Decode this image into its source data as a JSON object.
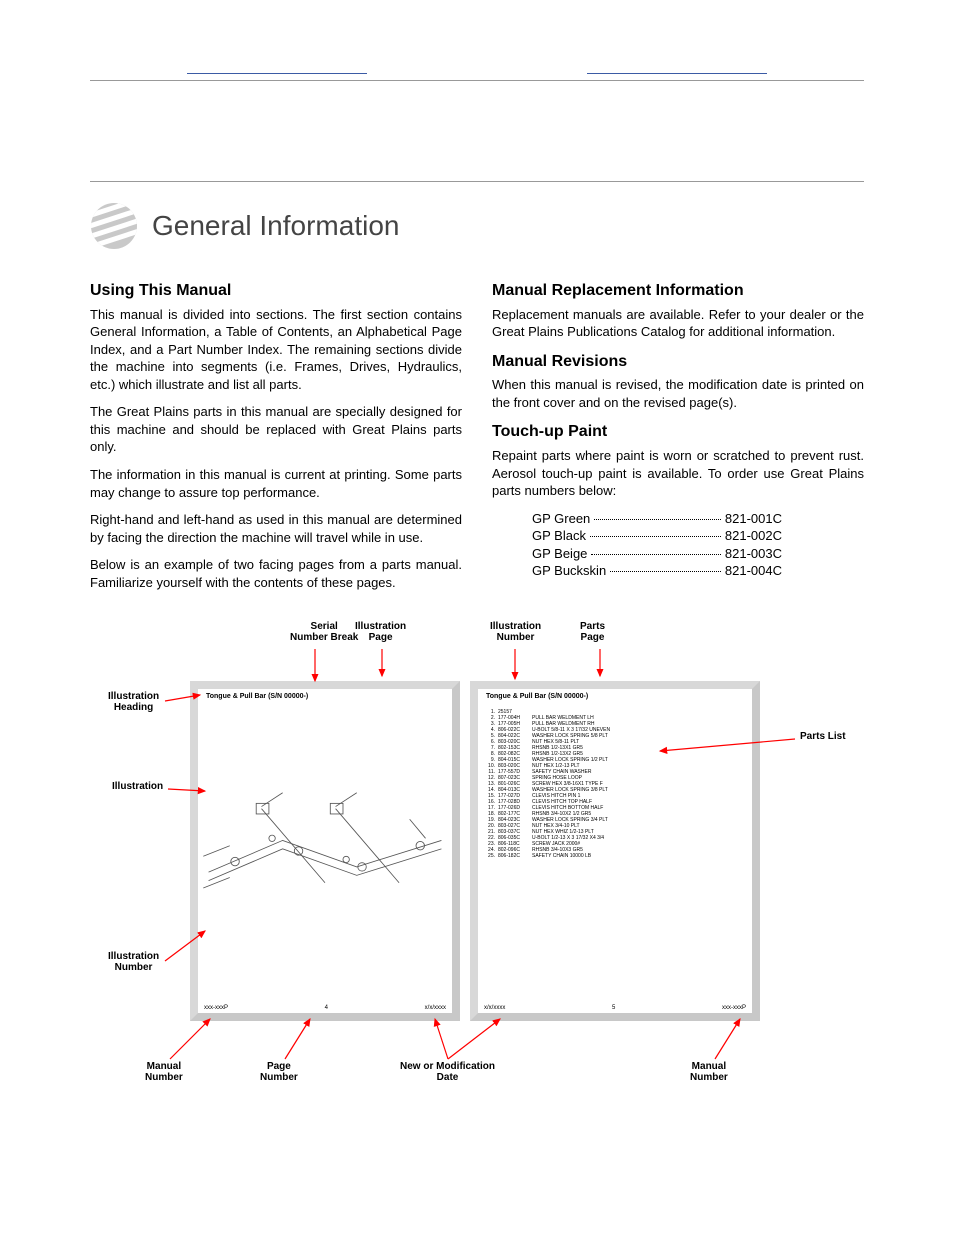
{
  "header": {
    "title": "General Information"
  },
  "left_col": {
    "h1": "Using This Manual",
    "p1": "This manual is divided into sections. The first section contains General Information, a Table of Contents, an Alphabetical Page Index, and a Part Number Index. The remaining sections divide the machine into segments (i.e. Frames, Drives, Hydraulics, etc.) which illustrate and list all parts.",
    "p2": "The Great Plains parts in this manual are specially designed for this machine and should be replaced with Great Plains parts only.",
    "p3": "The information in this manual is current at printing. Some parts may change to assure top performance.",
    "p4": "Right-hand and left-hand as used in this manual are determined by facing the direction the machine will travel while in use.",
    "p5": "Below is an example of two facing pages from a parts manual. Familiarize yourself with the contents of these pages."
  },
  "right_col": {
    "h1": "Manual Replacement Information",
    "p1": "Replacement manuals are available. Refer to your dealer or the Great Plains Publications Catalog for additional information.",
    "h2": "Manual Revisions",
    "p2": "When this manual is revised, the modification date is printed on the front cover and on the revised page(s).",
    "h3": "Touch-up Paint",
    "p3": "Repaint parts where paint is worn or scratched to prevent rust. Aerosol touch-up paint is available. To order use Great Plains parts numbers below:"
  },
  "paint": [
    {
      "name": "GP Green",
      "num": "821-001C"
    },
    {
      "name": "GP Black",
      "num": "821-002C"
    },
    {
      "name": "GP Beige",
      "num": "821-003C"
    },
    {
      "name": "GP Buckskin",
      "num": "821-004C"
    }
  ],
  "diagram": {
    "top_labels": {
      "serial": "Serial\nNumber Break",
      "illus_page": "Illustration\nPage",
      "illus_num": "Illustration\nNumber",
      "parts_page": "Parts\nPage"
    },
    "left_labels": {
      "heading": "Illustration\nHeading",
      "illus": "Illustration",
      "num": "Illustration\nNumber"
    },
    "right_label": "Parts List",
    "bottom_labels": {
      "manual_num_l": "Manual\nNumber",
      "page_num": "Page\nNumber",
      "mod_date": "New or Modification\nDate",
      "manual_num_r": "Manual\nNumber"
    },
    "panel_title_left": "Tongue & Pull Bar (S/N 00000-)",
    "panel_title_right": "Tongue & Pull Bar (S/N 00000-)",
    "footer_left": {
      "a": "xxx-xxxP",
      "b": "4",
      "c": "x/x/xxxx"
    },
    "footer_right": {
      "a": "x/x/xxxx",
      "b": "5",
      "c": "xxx-xxxP"
    },
    "parts_list": [
      {
        "n": "1",
        "pn": "25157",
        "d": ""
      },
      {
        "n": "2",
        "pn": "177-004H",
        "d": "PULL BAR WELDMENT LH"
      },
      {
        "n": "3",
        "pn": "177-005H",
        "d": "PULL BAR WELDMENT RH"
      },
      {
        "n": "4",
        "pn": "806-022C",
        "d": "U-BOLT 5/8-11 X 3 17/32 UNEVEN"
      },
      {
        "n": "5",
        "pn": "804-022C",
        "d": "WASHER LOCK SPRING 5/8 PLT"
      },
      {
        "n": "6",
        "pn": "803-020C",
        "d": "NUT HEX 5/8-11 PLT"
      },
      {
        "n": "7",
        "pn": "802-153C",
        "d": "RHSNB 1/2-13X1 GR5"
      },
      {
        "n": "8",
        "pn": "802-082C",
        "d": "RHSNB 1/2-13X2 GR5"
      },
      {
        "n": "9",
        "pn": "804-015C",
        "d": "WASHER LOCK SPRING 1/2 PLT"
      },
      {
        "n": "10",
        "pn": "803-020C",
        "d": "NUT HEX 1/2-13 PLT"
      },
      {
        "n": "11",
        "pn": "177-557D",
        "d": "SAFETY CHAIN WASHER"
      },
      {
        "n": "12",
        "pn": "807-023C",
        "d": "SPRING HOSE LOOP"
      },
      {
        "n": "13",
        "pn": "801-026C",
        "d": "SCREW HEX 3/8-16X1 TYPE F"
      },
      {
        "n": "14",
        "pn": "804-013C",
        "d": "WASHER LOCK SPRING 3/8 PLT"
      },
      {
        "n": "15",
        "pn": "177-027D",
        "d": "CLEVIS HITCH PIN 1"
      },
      {
        "n": "16",
        "pn": "177-028D",
        "d": "CLEVIS HITCH TOP HALF"
      },
      {
        "n": "17",
        "pn": "177-026D",
        "d": "CLEVIS HITCH BOTTOM HALF"
      },
      {
        "n": "18",
        "pn": "802-177C",
        "d": "RHSNB 3/4-10X2 1/2 GR5"
      },
      {
        "n": "19",
        "pn": "804-023C",
        "d": "WASHER LOCK SPRING 3/4 PLT"
      },
      {
        "n": "20",
        "pn": "803-027C",
        "d": "NUT HEX 3/4-10 PLT"
      },
      {
        "n": "21",
        "pn": "803-037C",
        "d": "NUT HEX WHIZ 1/2-13 PLT"
      },
      {
        "n": "22",
        "pn": "806-035C",
        "d": "U-BOLT 1/2-13 X 3 17/32 X4 3/4"
      },
      {
        "n": "23",
        "pn": "806-118C",
        "d": "SCREW JACK 2000#"
      },
      {
        "n": "24",
        "pn": "802-096C",
        "d": "RHSNB 3/4-10X3 GR5"
      },
      {
        "n": "25",
        "pn": "806-182C",
        "d": "SAFETY CHAIN 10000 LB"
      }
    ],
    "callout_color": "#ff0000",
    "tab_color": "#3b5ba5",
    "panel_border": "#c8c8c8"
  }
}
